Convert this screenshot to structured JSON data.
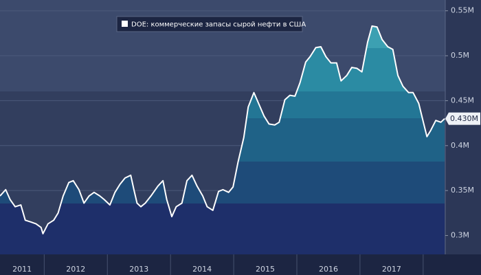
{
  "chart_data": {
    "type": "area",
    "ylim": [
      0.279,
      0.562
    ],
    "yticks": [
      {
        "value": 0.3,
        "label": "0.3M"
      },
      {
        "value": 0.35,
        "label": "0.35M"
      },
      {
        "value": 0.4,
        "label": "0.4M"
      },
      {
        "value": 0.45,
        "label": "0.45M"
      },
      {
        "value": 0.5,
        "label": "0.5M"
      },
      {
        "value": 0.55,
        "label": "0.55M"
      }
    ],
    "xlim": [
      2011.3,
      2018.35
    ],
    "xticks": [
      2011,
      2012,
      2013,
      2014,
      2015,
      2016,
      2017
    ],
    "grid": true,
    "legend": "top",
    "x": [
      2011.3,
      2011.39,
      2011.46,
      2011.54,
      2011.63,
      2011.7,
      2011.79,
      2011.87,
      2011.95,
      2011.98,
      2012.06,
      2012.15,
      2012.22,
      2012.3,
      2012.39,
      2012.46,
      2012.55,
      2012.63,
      2012.71,
      2012.79,
      2012.88,
      2012.95,
      2013.04,
      2013.12,
      2013.2,
      2013.28,
      2013.37,
      2013.42,
      2013.47,
      2013.53,
      2013.6,
      2013.69,
      2013.8,
      2013.88,
      2013.94,
      2014.02,
      2014.09,
      2014.18,
      2014.26,
      2014.34,
      2014.42,
      2014.51,
      2014.58,
      2014.67,
      2014.76,
      2014.83,
      2014.92,
      2014.99,
      2015.07,
      2015.16,
      2015.23,
      2015.32,
      2015.4,
      2015.48,
      2015.56,
      2015.65,
      2015.72,
      2015.81,
      2015.89,
      2015.97,
      2016.05,
      2016.14,
      2016.21,
      2016.3,
      2016.38,
      2016.46,
      2016.54,
      2016.63,
      2016.7,
      2016.79,
      2016.87,
      2016.95,
      2017.03,
      2017.12,
      2017.19,
      2017.27,
      2017.35,
      2017.44,
      2017.52,
      2017.6,
      2017.68,
      2017.77,
      2017.84,
      2017.93,
      2018.01,
      2018.06,
      2018.12,
      2018.2,
      2018.28,
      2018.34
    ],
    "series": [
      {
        "name": "DOE: коммерческие запасы сырой нефти в США",
        "color": "#ffffff",
        "values": [
          0.344,
          0.351,
          0.34,
          0.332,
          0.334,
          0.317,
          0.315,
          0.313,
          0.309,
          0.302,
          0.313,
          0.317,
          0.325,
          0.344,
          0.359,
          0.361,
          0.351,
          0.336,
          0.344,
          0.348,
          0.344,
          0.34,
          0.334,
          0.348,
          0.357,
          0.364,
          0.367,
          0.351,
          0.336,
          0.332,
          0.336,
          0.344,
          0.355,
          0.361,
          0.34,
          0.321,
          0.332,
          0.336,
          0.361,
          0.367,
          0.355,
          0.344,
          0.332,
          0.328,
          0.349,
          0.351,
          0.348,
          0.354,
          0.382,
          0.409,
          0.443,
          0.459,
          0.446,
          0.433,
          0.424,
          0.423,
          0.426,
          0.451,
          0.456,
          0.455,
          0.47,
          0.493,
          0.499,
          0.509,
          0.51,
          0.499,
          0.492,
          0.492,
          0.472,
          0.478,
          0.487,
          0.486,
          0.482,
          0.515,
          0.533,
          0.532,
          0.518,
          0.51,
          0.507,
          0.478,
          0.466,
          0.459,
          0.459,
          0.447,
          0.424,
          0.41,
          0.417,
          0.428,
          0.426,
          0.43
        ],
        "value_labels": [
          null,
          null,
          null,
          null,
          null,
          null,
          null,
          null,
          null,
          null,
          null,
          null,
          null,
          null,
          null,
          null,
          null,
          null,
          null,
          null,
          null,
          null,
          null,
          null,
          null,
          null,
          null,
          null,
          null,
          null,
          null,
          null,
          null,
          null,
          null,
          null,
          null,
          null,
          null,
          null,
          null,
          null,
          null,
          null,
          null,
          null,
          null,
          null,
          null,
          null,
          null,
          null,
          null,
          null,
          null,
          null,
          null,
          null,
          null,
          null,
          null,
          null,
          null,
          null,
          null,
          null,
          null,
          null,
          null,
          null,
          null,
          null,
          null,
          null,
          null,
          null,
          null,
          null,
          null,
          null,
          null,
          null,
          null,
          null,
          null,
          null,
          null,
          null,
          null,
          "0.430M"
        ]
      }
    ]
  }
}
